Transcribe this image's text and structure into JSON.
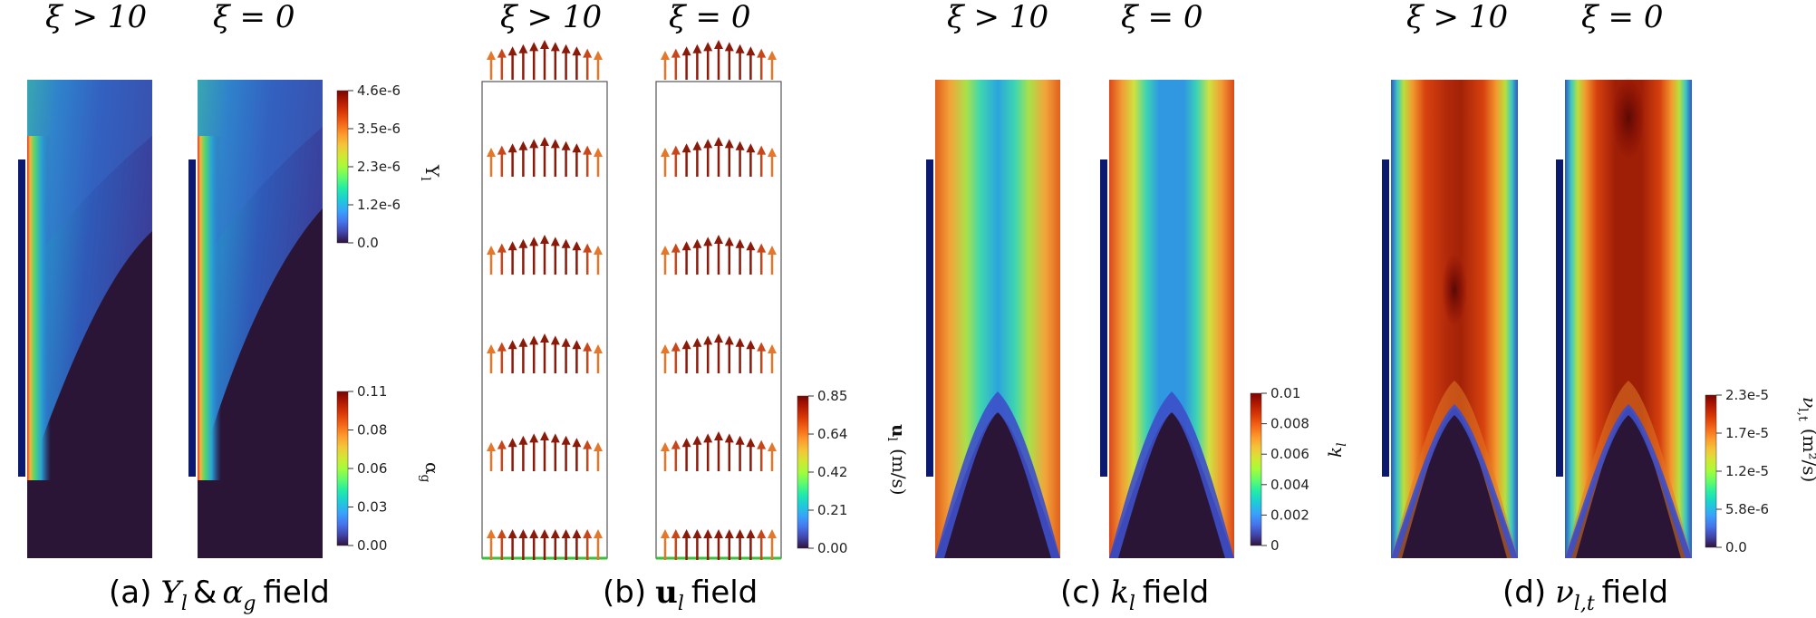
{
  "chart_data": [
    {
      "type": "heatmap",
      "panel": "a",
      "caption": {
        "label": "(a)",
        "var": "Y",
        "sub": "l",
        "amp": "&",
        "var2": "α",
        "sub2": "g",
        "word": "field"
      },
      "columns": [
        {
          "header": "ξ > 10"
        },
        {
          "header": "ξ = 0"
        }
      ],
      "colorbars": [
        {
          "title": "Y",
          "title_sub": "l",
          "ticks": [
            "4.6e-6",
            "3.5e-6",
            "2.3e-6",
            "1.2e-6",
            "0.0"
          ],
          "range": [
            0.0,
            4.6e-06
          ]
        },
        {
          "title": "α",
          "title_sub": "g",
          "ticks": [
            "0.11",
            "0.08",
            "0.06",
            "0.03",
            "0.00"
          ],
          "range": [
            0.0,
            0.11
          ]
        }
      ]
    },
    {
      "type": "heatmap",
      "panel": "b",
      "caption": {
        "label": "(b)",
        "var": "u",
        "sub": "l",
        "word": "field"
      },
      "columns": [
        {
          "header": "ξ > 10"
        },
        {
          "header": "ξ = 0"
        }
      ],
      "colorbars": [
        {
          "title": "u",
          "title_sub": "l",
          "title_unit": "(m/s)",
          "ticks": [
            "0.85",
            "0.64",
            "0.42",
            "0.21",
            "0.00"
          ],
          "range": [
            0.0,
            0.85
          ]
        }
      ]
    },
    {
      "type": "heatmap",
      "panel": "c",
      "caption": {
        "label": "(c)",
        "var": "k",
        "sub": "l",
        "word": "field"
      },
      "columns": [
        {
          "header": "ξ > 10"
        },
        {
          "header": "ξ = 0"
        }
      ],
      "colorbars": [
        {
          "title": "k",
          "title_sub": "l",
          "ticks": [
            "0.01",
            "0.008",
            "0.006",
            "0.004",
            "0.002",
            "0"
          ],
          "range": [
            0,
            0.01
          ]
        }
      ]
    },
    {
      "type": "heatmap",
      "panel": "d",
      "caption": {
        "label": "(d)",
        "var": "ν",
        "sub": "l,t",
        "word": "field"
      },
      "columns": [
        {
          "header": "ξ > 10"
        },
        {
          "header": "ξ = 0"
        }
      ],
      "colorbars": [
        {
          "title": "ν",
          "title_sub": "l,t",
          "title_unit": "(m²/s)",
          "ticks": [
            "2.3e-5",
            "1.7e-5",
            "1.2e-5",
            "5.8e-6",
            "0.0"
          ],
          "range": [
            0.0,
            2.3e-05
          ]
        }
      ]
    }
  ],
  "colors": {
    "turbo": [
      "#30123b",
      "#4145ab",
      "#4675ed",
      "#39a2fc",
      "#1bcfd4",
      "#24eca6",
      "#61fc6c",
      "#a4fc3b",
      "#d1e834",
      "#f3c63a",
      "#fe9b2d",
      "#f36315",
      "#d93806",
      "#b11901",
      "#7a0403"
    ],
    "dark": "#2a1536",
    "navy": "#0b1a6e",
    "inlet_green": "#3bbf3b"
  }
}
